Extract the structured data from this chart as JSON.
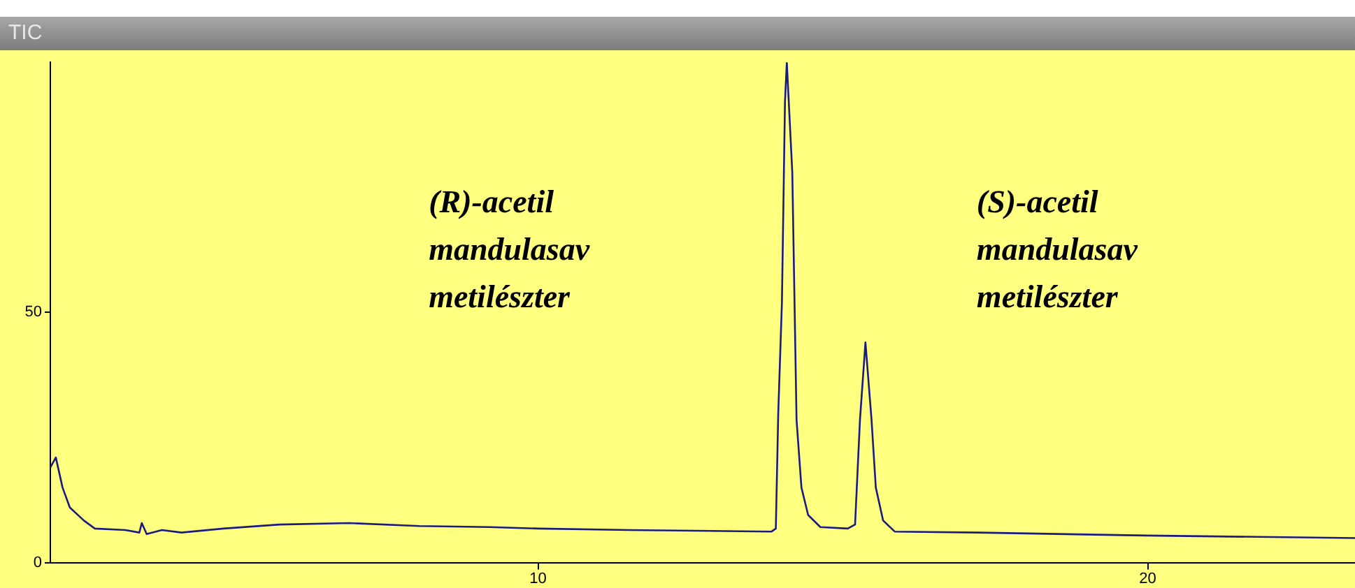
{
  "chart_data": {
    "type": "line",
    "title": "TIC",
    "x": [
      2.0,
      2.09,
      2.2,
      2.32,
      2.55,
      2.73,
      3.23,
      3.46,
      3.5,
      3.58,
      3.83,
      4.15,
      4.84,
      5.76,
      6.9,
      8.05,
      9.2,
      10,
      11.5,
      13.83,
      13.9,
      13.94,
      14.0,
      14.05,
      14.08,
      14.17,
      14.24,
      14.32,
      14.43,
      14.63,
      15.08,
      15.2,
      15.28,
      15.37,
      15.47,
      15.54,
      15.66,
      15.85,
      17.22,
      19.98,
      23.4
    ],
    "series": [
      {
        "color": "#1a1a80",
        "values": [
          19,
          21,
          15,
          11,
          8.4,
          6.8,
          6.5,
          6,
          7.9,
          5.7,
          6.5,
          6,
          6.8,
          7.6,
          7.9,
          7.3,
          7.1,
          6.8,
          6.5,
          6.2,
          6.8,
          30,
          52,
          92,
          100,
          78,
          28.5,
          15,
          9.5,
          7.1,
          6.8,
          7.6,
          28.5,
          44,
          28.5,
          15,
          8.4,
          6.2,
          6,
          5.4,
          4.9
        ]
      }
    ],
    "xlim": [
      2,
      23.4
    ],
    "xticks": [
      10,
      20
    ],
    "ylim": [
      0,
      100
    ],
    "yticks": [
      0,
      50
    ],
    "grid": false,
    "legend": false,
    "marker": "none",
    "line_style": "solid",
    "annotations": [
      "(R)-acetil\nmandulasav\nmetilészter",
      "(S)-acetil\nmandulasav\nmetilészter"
    ]
  }
}
